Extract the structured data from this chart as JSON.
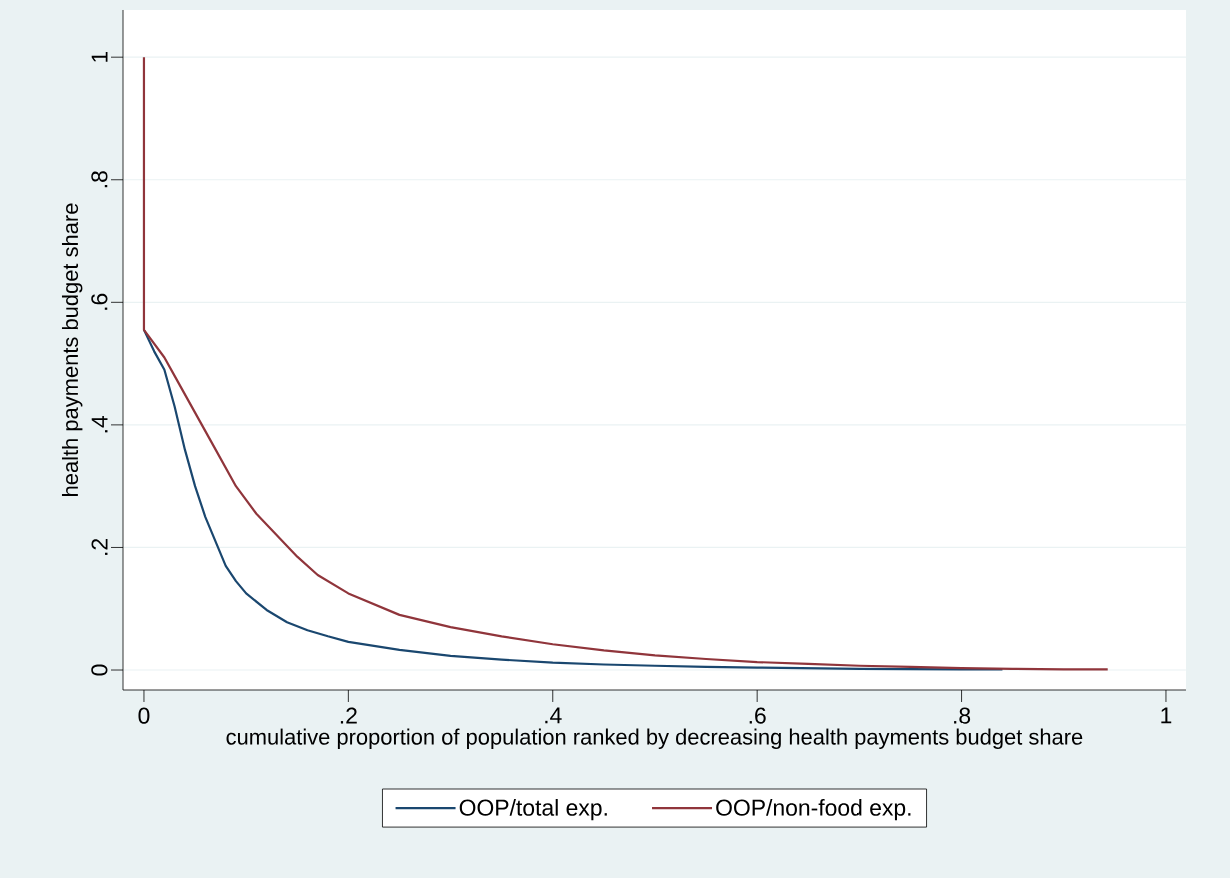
{
  "chart_data": {
    "type": "line",
    "xlabel": "cumulative proportion of population ranked by decreasing health payments budget share",
    "ylabel": "health payments budget share",
    "xlim": [
      -0.0205,
      1.0196
    ],
    "ylim": [
      -0.0326,
      1.077
    ],
    "xticks": [
      0,
      {
        "value": 0.2,
        "label": ".2"
      },
      {
        "value": 0.4,
        "label": ".4"
      },
      {
        "value": 0.6,
        "label": ".6"
      },
      {
        "value": 0.8,
        "label": ".8"
      },
      1
    ],
    "yticks": [
      0,
      {
        "value": 0.2,
        "label": ".2"
      },
      {
        "value": 0.4,
        "label": ".4"
      },
      {
        "value": 0.6,
        "label": ".6"
      },
      {
        "value": 0.8,
        "label": ".8"
      },
      1
    ],
    "grid": "y",
    "legend": "bottom",
    "series": [
      {
        "name": "OOP/total exp.",
        "color": "#1a476f",
        "x": [
          0,
          0.01,
          0.02,
          0.03,
          0.04,
          0.05,
          0.06,
          0.07,
          0.08,
          0.09,
          0.1,
          0.12,
          0.14,
          0.16,
          0.18,
          0.2,
          0.25,
          0.3,
          0.35,
          0.4,
          0.45,
          0.5,
          0.55,
          0.6,
          0.7,
          0.8,
          0.84
        ],
        "values": [
          0.555,
          0.52,
          0.49,
          0.43,
          0.36,
          0.3,
          0.25,
          0.21,
          0.17,
          0.145,
          0.125,
          0.098,
          0.078,
          0.065,
          0.055,
          0.046,
          0.033,
          0.023,
          0.017,
          0.012,
          0.009,
          0.007,
          0.005,
          0.004,
          0.002,
          0.001,
          0.001
        ]
      },
      {
        "name": "OOP/non-food exp.",
        "color": "#90353b",
        "x": [
          0,
          0,
          0.02,
          0.03,
          0.05,
          0.07,
          0.09,
          0.11,
          0.13,
          0.15,
          0.17,
          0.2,
          0.25,
          0.3,
          0.35,
          0.4,
          0.45,
          0.5,
          0.55,
          0.6,
          0.65,
          0.7,
          0.75,
          0.8,
          0.85,
          0.9,
          0.943
        ],
        "values": [
          1.0,
          0.555,
          0.51,
          0.48,
          0.42,
          0.36,
          0.3,
          0.255,
          0.22,
          0.185,
          0.155,
          0.125,
          0.09,
          0.07,
          0.055,
          0.042,
          0.032,
          0.024,
          0.018,
          0.013,
          0.01,
          0.007,
          0.005,
          0.003,
          0.002,
          0.001,
          0.001
        ]
      }
    ]
  }
}
